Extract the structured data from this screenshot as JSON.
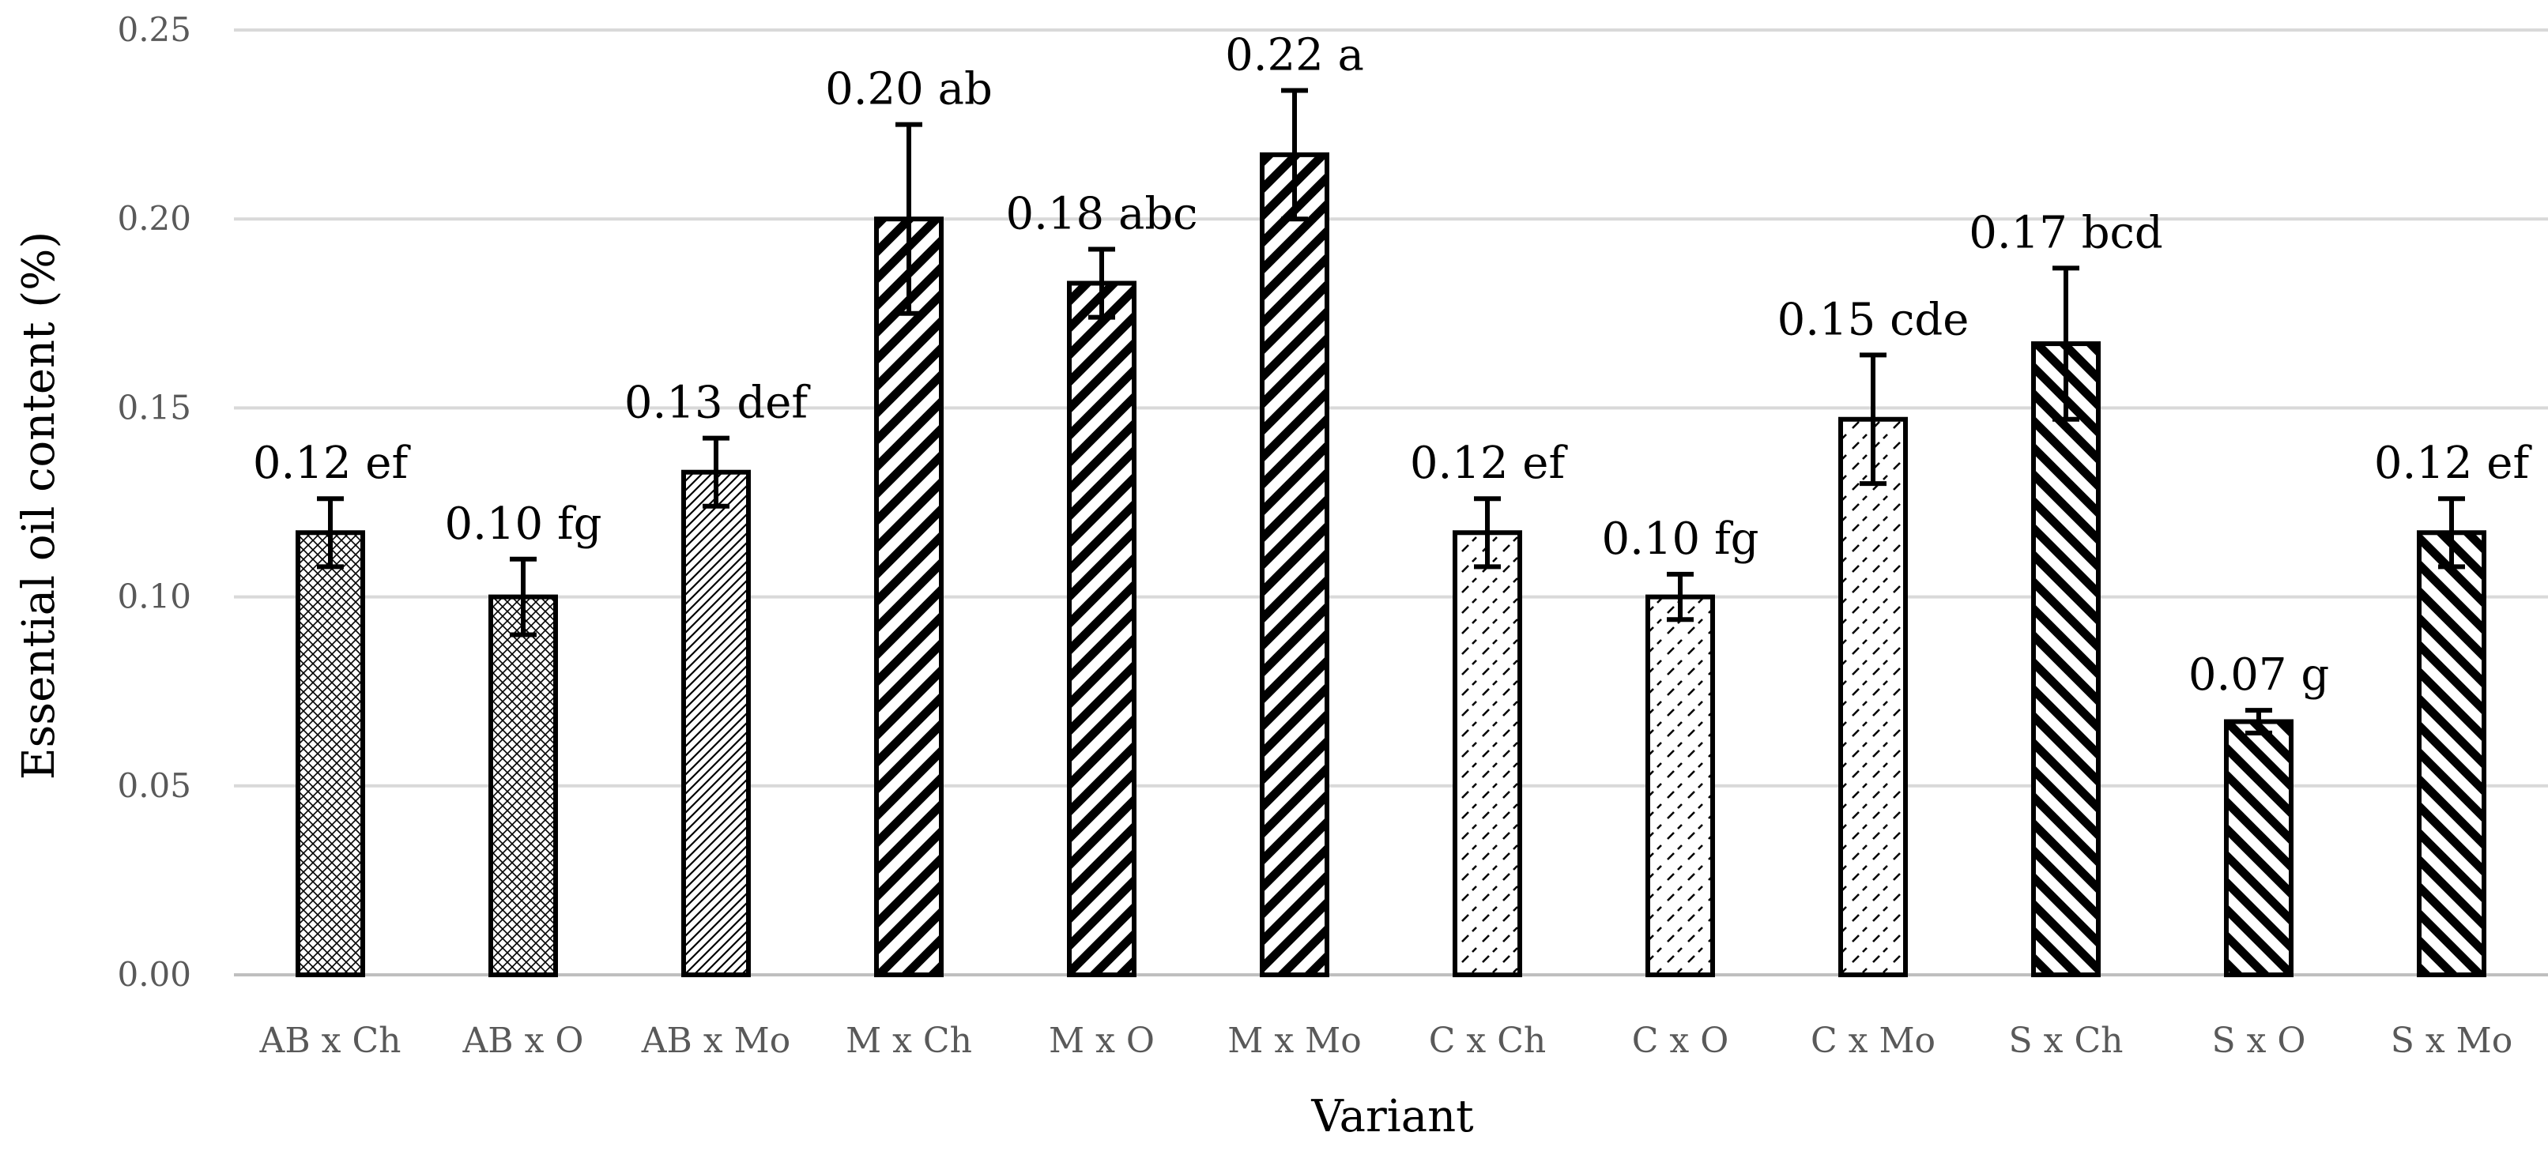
{
  "chart_data": {
    "type": "bar",
    "title": "",
    "xlabel": "Variant",
    "ylabel": "Essential oil content (%)",
    "ylim": [
      0,
      0.25
    ],
    "yticks": [
      "0.00",
      "0.05",
      "0.10",
      "0.15",
      "0.20",
      "0.25"
    ],
    "grid": true,
    "categories": [
      "AB x Ch",
      "AB x O",
      "AB x Mo",
      "M x Ch",
      "M x O",
      "M x Mo",
      "C x Ch",
      "C x O",
      "C x Mo",
      "S x Ch",
      "S x O",
      "S x Mo"
    ],
    "values": [
      0.117,
      0.1,
      0.133,
      0.2,
      0.183,
      0.217,
      0.117,
      0.1,
      0.147,
      0.167,
      0.067,
      0.117
    ],
    "errors": [
      0.009,
      0.01,
      0.009,
      0.025,
      0.009,
      0.017,
      0.009,
      0.006,
      0.017,
      0.02,
      0.003,
      0.009
    ],
    "labels": [
      "0.12 ef",
      "0.10 fg",
      "0.13 def",
      "0.20 ab",
      "0.18 abc",
      "0.22 a",
      "0.12 ef",
      "0.10 fg",
      "0.15 cde",
      "0.17 bcd",
      "0.07 g",
      "0.12 ef"
    ],
    "patterns": [
      "crosshatch-thin",
      "crosshatch-thin",
      "diagonal-thin",
      "diagonal-thick",
      "diagonal-thick",
      "diagonal-thick",
      "dashed-diagonal",
      "dashed-diagonal",
      "dashed-diagonal",
      "backdiagonal-thick",
      "backdiagonal-thick",
      "backdiagonal-thick"
    ]
  }
}
